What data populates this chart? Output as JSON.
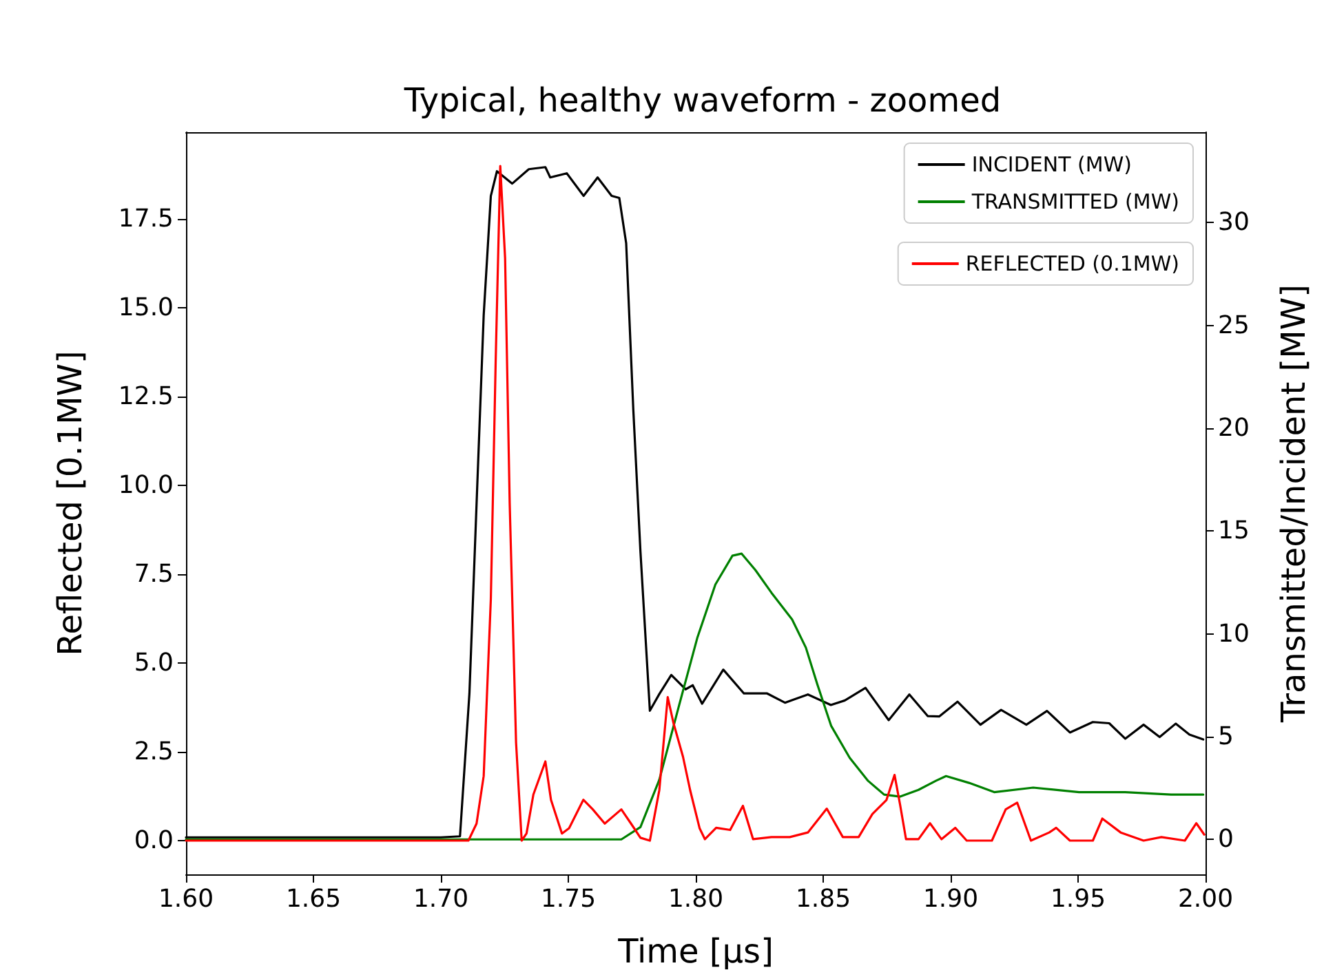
{
  "chart_data": {
    "type": "line",
    "title": "Typical, healthy waveform - zoomed",
    "xlabel": "Time [μs]",
    "ylabel": "Reflected [0.1MW]",
    "y2label": "Transmitted/Incident [MW]",
    "xlim": [
      1.6,
      2.0
    ],
    "xticks": [
      {
        "value": 1.6,
        "label": "1.60"
      },
      {
        "value": 1.65,
        "label": "1.65"
      },
      {
        "value": 1.7,
        "label": "1.70"
      },
      {
        "value": 1.75,
        "label": "1.75"
      },
      {
        "value": 1.8,
        "label": "1.80"
      },
      {
        "value": 1.85,
        "label": "1.85"
      },
      {
        "value": 1.9,
        "label": "1.90"
      },
      {
        "value": 1.95,
        "label": "1.95"
      },
      {
        "value": 2.0,
        "label": "2.00"
      }
    ],
    "ylim": [
      -0.95,
      19.95
    ],
    "yticks": [
      {
        "value": 0,
        "label": "0.0"
      },
      2.5,
      {
        "value": 5,
        "label": "5.0"
      },
      7.5,
      {
        "value": 10,
        "label": "10.0"
      },
      12.5,
      {
        "value": 15,
        "label": "15.0"
      },
      17.5
    ],
    "y2lim": [
      -1.7,
      34.4
    ],
    "y2ticks": [
      0,
      5,
      10,
      15,
      20,
      25,
      30
    ],
    "grid": false,
    "legend": "top right",
    "marker": "none",
    "line_style": "solid",
    "series": [
      {
        "name": "INCIDENT (MW)",
        "color": "#000000",
        "axis": "y2",
        "x": [
          1.6,
          1.65,
          1.7,
          1.7075,
          1.7112,
          1.714,
          1.7168,
          1.7196,
          1.722,
          1.728,
          1.7345,
          1.741,
          1.7429,
          1.7494,
          1.756,
          1.7615,
          1.767,
          1.77,
          1.7727,
          1.7755,
          1.7783,
          1.782,
          1.7857,
          1.7904,
          1.796,
          1.7988,
          1.8025,
          1.8108,
          1.8189,
          1.828,
          1.835,
          1.844,
          1.853,
          1.8585,
          1.8666,
          1.8757,
          1.8838,
          1.891,
          1.8955,
          1.9027,
          1.9117,
          1.9198,
          1.9297,
          1.9378,
          1.9468,
          1.9558,
          1.9622,
          1.9685,
          1.9757,
          1.982,
          1.9883,
          1.9937,
          1.9991
        ],
        "values": [
          0.1,
          0.1,
          0.1,
          0.15,
          7.1,
          16.3,
          25.5,
          31.3,
          32.5,
          31.9,
          32.6,
          32.7,
          32.2,
          32.4,
          31.3,
          32.2,
          31.3,
          31.2,
          29.0,
          20.9,
          14.0,
          6.26,
          7.07,
          8.0,
          7.3,
          7.5,
          6.6,
          8.26,
          7.1,
          7.1,
          6.65,
          7.05,
          6.54,
          6.76,
          7.37,
          5.8,
          7.05,
          6.0,
          5.98,
          6.7,
          5.58,
          6.3,
          5.58,
          6.25,
          5.2,
          5.71,
          5.65,
          4.9,
          5.58,
          4.98,
          5.63,
          5.1,
          4.86
        ]
      },
      {
        "name": "TRANSMITTED (MW)",
        "color": "#008000",
        "axis": "y2",
        "x": [
          1.6,
          1.7,
          1.7708,
          1.7783,
          1.7857,
          1.7932,
          1.8006,
          1.8077,
          1.8144,
          1.818,
          1.8234,
          1.8297,
          1.8378,
          1.8432,
          1.8477,
          1.8531,
          1.8604,
          1.8676,
          1.8739,
          1.8802,
          1.8874,
          1.8942,
          1.8982,
          1.9072,
          1.9171,
          1.9324,
          1.9504,
          1.9685,
          1.9865,
          1.9991
        ],
        "values": [
          0,
          0,
          0,
          0.6,
          2.9,
          6.4,
          9.8,
          12.4,
          13.8,
          13.9,
          13.1,
          12.0,
          10.7,
          9.33,
          7.54,
          5.53,
          3.97,
          2.85,
          2.18,
          2.08,
          2.41,
          2.85,
          3.08,
          2.75,
          2.3,
          2.52,
          2.3,
          2.3,
          2.18,
          2.18
        ]
      },
      {
        "name": "REFLECTED (0.1MW)",
        "color": "#ff0000",
        "x": [
          1.6,
          1.7108,
          1.714,
          1.7168,
          1.7196,
          1.7215,
          1.7233,
          1.7252,
          1.727,
          1.7295,
          1.7317,
          1.7336,
          1.7363,
          1.741,
          1.7432,
          1.7475,
          1.7503,
          1.7559,
          1.7596,
          1.7643,
          1.7708,
          1.7746,
          1.7783,
          1.782,
          1.7857,
          1.789,
          1.7913,
          1.795,
          1.7978,
          1.8015,
          1.8036,
          1.808,
          1.8135,
          1.8185,
          1.8225,
          1.8297,
          1.8369,
          1.844,
          1.8514,
          1.8577,
          1.8639,
          1.8693,
          1.8748,
          1.878,
          1.8802,
          1.8825,
          1.8874,
          1.8919,
          1.8964,
          1.9018,
          1.9063,
          1.9162,
          1.9216,
          1.9261,
          1.9315,
          1.9387,
          1.9414,
          1.9468,
          1.9558,
          1.9595,
          1.9667,
          1.9757,
          1.9827,
          1.9919,
          1.9964,
          1.9995
        ],
        "values": [
          0,
          0,
          0.48,
          1.82,
          6.8,
          13.5,
          19.0,
          16.4,
          9.5,
          2.76,
          0,
          0.2,
          1.3,
          2.23,
          1.15,
          0.2,
          0.35,
          1.15,
          0.88,
          0.48,
          0.88,
          0.48,
          0.08,
          0,
          1.42,
          4.04,
          3.3,
          2.36,
          1.42,
          0.35,
          0.04,
          0.36,
          0.3,
          0.98,
          0.04,
          0.1,
          0.1,
          0.23,
          0.9,
          0.1,
          0.1,
          0.75,
          1.14,
          1.85,
          1.0,
          0.04,
          0.04,
          0.49,
          0.04,
          0.36,
          0,
          0,
          0.88,
          1.07,
          0,
          0.23,
          0.36,
          0,
          0,
          0.62,
          0.23,
          0,
          0.1,
          0,
          0.49,
          0.17
        ]
      }
    ]
  }
}
